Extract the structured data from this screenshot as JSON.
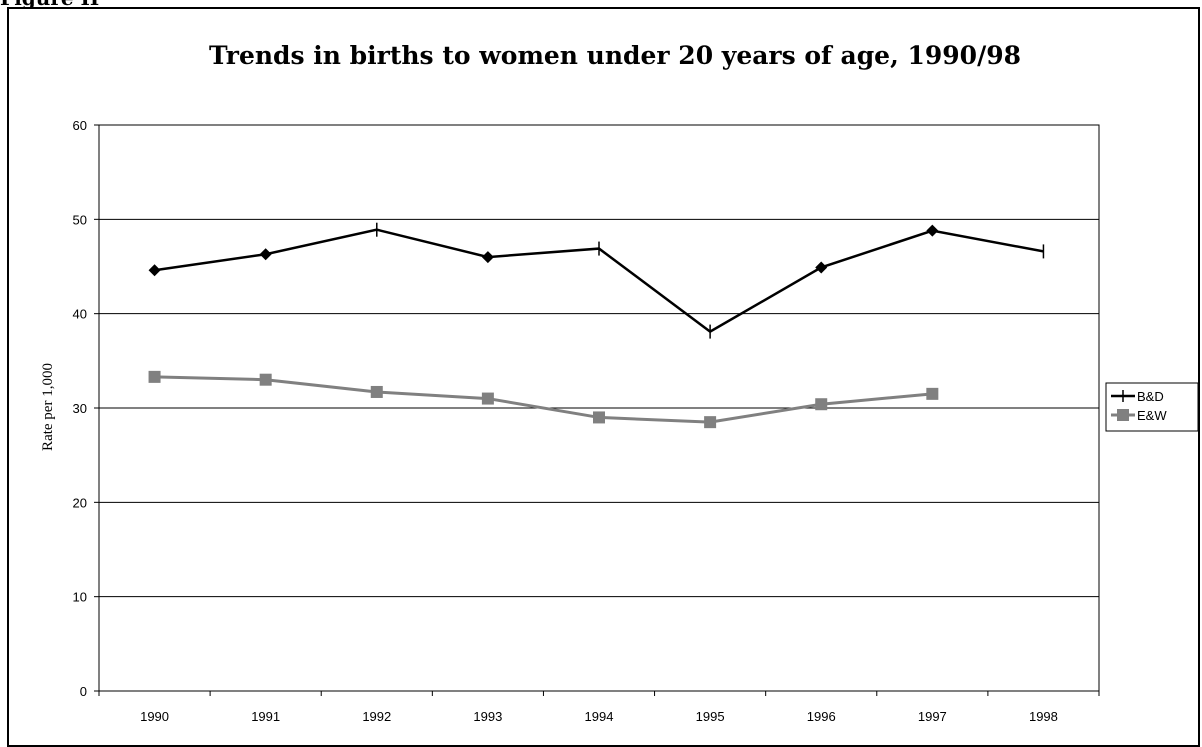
{
  "page_label": "Figure II",
  "chart_data": {
    "type": "line",
    "title": "Trends in births to women under 20 years of age, 1990/98",
    "xlabel": "",
    "ylabel": "Rate per 1,000",
    "categories": [
      "1990",
      "1991",
      "1992",
      "1993",
      "1994",
      "1995",
      "1996",
      "1997",
      "1998"
    ],
    "ylim": [
      0,
      60
    ],
    "yticks": [
      "0",
      "10",
      "20",
      "30",
      "40",
      "50",
      "60"
    ],
    "grid": true,
    "legend_position": "right",
    "series": [
      {
        "name": "B&D",
        "color": "#000000",
        "values": [
          44.6,
          46.3,
          48.9,
          46.0,
          46.9,
          38.1,
          44.9,
          48.8,
          46.6
        ]
      },
      {
        "name": "E&W",
        "color": "#808080",
        "values": [
          33.3,
          33.0,
          31.7,
          31.0,
          29.0,
          28.5,
          30.4,
          31.5,
          null
        ]
      }
    ]
  }
}
